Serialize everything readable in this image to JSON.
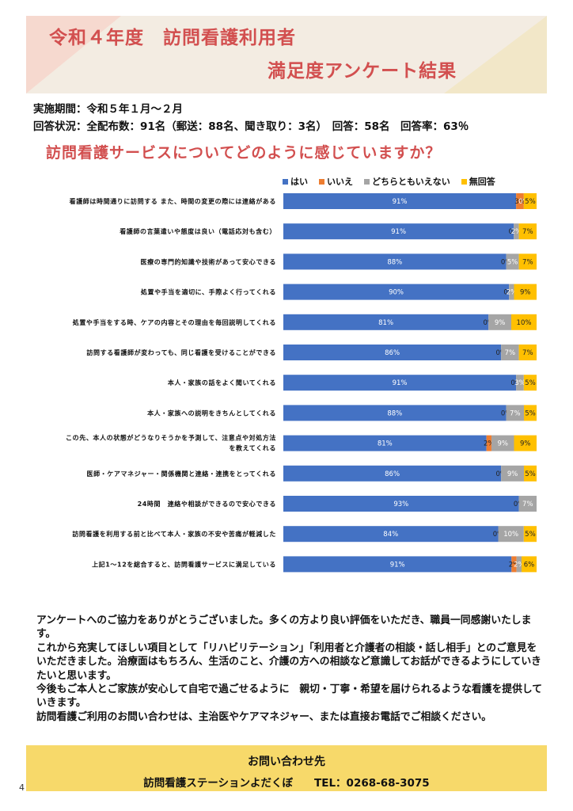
{
  "header": {
    "title_line1": "令和４年度　訪問看護利用者",
    "title_line2": "満足度アンケート結果"
  },
  "survey": {
    "period": "実施期間：令和５年１月～２月",
    "status": "回答状況：全配布数：91名（郵送：88名、聞き取り：3名）　回答：58名　回答率：63％"
  },
  "question": "訪問看護サービスについてどのように感じていますか？",
  "colors": {
    "yes": "#4472c4",
    "no": "#ed7d31",
    "neutral": "#a5a5a5",
    "none": "#ffc000"
  },
  "chart_data": {
    "type": "bar",
    "orientation": "horizontal-stacked-100",
    "legend_position": "top",
    "grid": false,
    "series": [
      {
        "name": "はい",
        "values": [
          91,
          91,
          88,
          90,
          81,
          86,
          91,
          88,
          81,
          86,
          93,
          84,
          91
        ]
      },
      {
        "name": "いいえ",
        "values": [
          3,
          0,
          0,
          0,
          0,
          0,
          0,
          0,
          2,
          0,
          0,
          0,
          2
        ]
      },
      {
        "name": "どちらともいえない",
        "values": [
          0,
          2,
          5,
          2,
          9,
          7,
          3,
          7,
          9,
          9,
          7,
          10,
          2
        ]
      },
      {
        "name": "無回答",
        "values": [
          5,
          7,
          7,
          9,
          10,
          7,
          5,
          5,
          9,
          5,
          0,
          5,
          6
        ]
      }
    ],
    "categories": [
      "看護師は時間通りに訪問する また、時間の変更の際には連絡がある",
      "看護師の言葉遣いや態度は良い（電話応対も含む）",
      "医療の専門的知識や技術があって安心できる",
      "処置や手当を適切に、手際よく行ってくれる",
      "処置や手当をする時、ケアの内容とその理由を毎回説明してくれる",
      "訪問する看護師が変わっても、同じ看護を受けることができる",
      "本人・家族の話をよく聞いてくれる",
      "本人・家族への説明をきちんとしてくれる",
      [
        "この先、本人の状態がどうなりそうかを予測して、注意点や対処方法",
        "を教えてくれる"
      ],
      "医師・ケアマネジャー・関係機関と連絡・連携をとってくれる",
      "24時間　連絡や相談ができるので安心できる",
      "訪問看護を利用する前と比べて本人・家族の不安や苦痛が軽減した",
      "上記1～12を総合すると、訪問看護サービスに満足している"
    ],
    "value_labels": [
      [
        "91%",
        "3%",
        "0%",
        "5%"
      ],
      [
        "91%",
        "0%",
        "2%",
        "7%"
      ],
      [
        "88%",
        "0%",
        "5%",
        "7%"
      ],
      [
        "90%",
        "0%",
        "2%",
        "9%"
      ],
      [
        "81%",
        "0%",
        "9%",
        "10%"
      ],
      [
        "86%",
        "0%",
        "7%",
        "7%"
      ],
      [
        "91%",
        "0%",
        "3%",
        "5%"
      ],
      [
        "88%",
        "0%",
        "7%",
        "5%"
      ],
      [
        "81%",
        "2%",
        "9%",
        "9%"
      ],
      [
        "86%",
        "0%",
        "9%",
        "5%"
      ],
      [
        "93%",
        "0%",
        "7%",
        ""
      ],
      [
        "84%",
        "0%",
        "10%",
        "5%"
      ],
      [
        "91%",
        "2%",
        "2%",
        "6%"
      ]
    ],
    "xlim": [
      0,
      100
    ]
  },
  "message": [
    "アンケートへのご協力をありがとうございました。多くの方より良い評価をいただき、職員一同感謝いたします。",
    "これから充実してほしい項目として「リハビリテーション」「利用者と介護者の相談・話し相手」とのご意見をいただきました。治療面はもちろん、生活のこと、介護の方への相談など意識してお話ができるようにしていきたいと思います。",
    "今後もご本人とご家族が安心して自宅で過ごせるように　親切・丁寧・希望を届けられるような看護を提供していきます。",
    "訪問看護ご利用のお問い合わせは、主治医やケアマネジャー、または直接お電話でご相談ください。"
  ],
  "contact": {
    "heading": "お問い合わせ先",
    "detail": "訪問看護ステーションよだくぼ　　TEL：0268-68-3075"
  },
  "page_number": "4"
}
